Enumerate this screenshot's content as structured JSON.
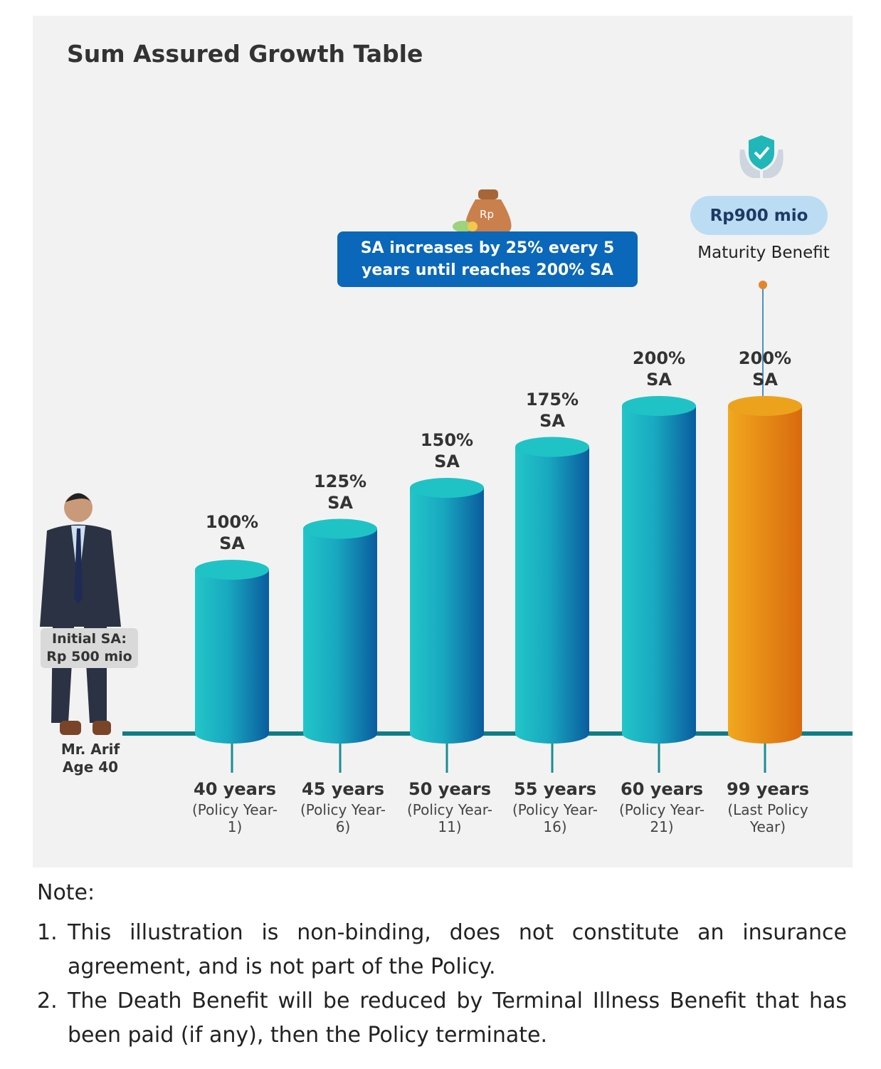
{
  "chart_data": {
    "type": "bar",
    "title": "Sum Assured Growth Table",
    "categories": [
      "40 years",
      "45 years",
      "50 years",
      "55 years",
      "60 years",
      "99 years"
    ],
    "category_details": [
      "(Policy Year-1)",
      "(Policy Year-6)",
      "(Policy Year-11)",
      "(Policy Year-16)",
      "(Policy Year-21)",
      "(Last Policy Year)"
    ],
    "values": [
      100,
      125,
      150,
      175,
      200,
      200
    ],
    "value_labels": [
      "100% SA",
      "125% SA",
      "150% SA",
      "175% SA",
      "200% SA",
      "200% SA"
    ],
    "colors": [
      "#1fc3c6",
      "#1fc3c6",
      "#1fc3c6",
      "#1fc3c6",
      "#1fc3c6",
      "#eca21d"
    ],
    "callout": "SA increases by 25% every 5 years until reaches 200% SA",
    "maturity_amount": "Rp900 mio",
    "maturity_label": "Maturity Benefit",
    "initial_sa": "Initial SA: Rp 500 mio",
    "person": "Mr. Arif Age 40"
  },
  "note": {
    "heading": "Note:",
    "items": [
      {
        "number": "1.",
        "text": "This illustration is non-binding, does not constitute an insurance agreement, and is not part of the Policy."
      },
      {
        "number": "2.",
        "text": "The Death Benefit will be reduced by Terminal Illness Benefit that has been paid (if any), then the Policy terminate."
      }
    ]
  }
}
